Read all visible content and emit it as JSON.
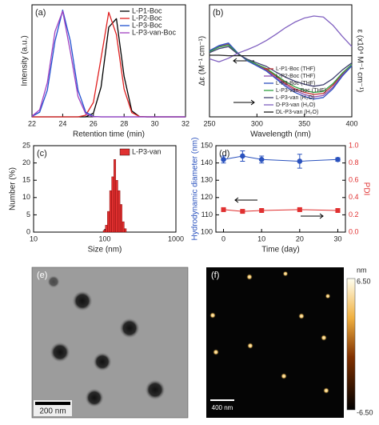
{
  "chart_data": [
    {
      "type": "line",
      "label": "(a)",
      "xlabel": "Retention time (min)",
      "ylabel": "Intensity (a.u.)",
      "x": [
        22,
        22.5,
        23,
        23.5,
        24,
        24.5,
        25,
        25.5,
        26,
        26.5,
        27,
        27.5,
        28,
        28.5,
        29,
        29.5,
        30,
        30.5,
        31,
        31.5,
        32
      ],
      "series": [
        {
          "name": "L-P1-Boc",
          "color": "#000000",
          "values": [
            0,
            0,
            0,
            0,
            0,
            0,
            0,
            0,
            0.034,
            0.28,
            0.84,
            0.92,
            0.38,
            0.056,
            0.003,
            0,
            0,
            0,
            0,
            0,
            0
          ]
        },
        {
          "name": "L-P2-Boc",
          "color": "#e02020",
          "values": [
            0,
            0,
            0,
            0,
            0,
            0,
            0,
            0.015,
            0.135,
            0.55,
            0.98,
            0.77,
            0.26,
            0.04,
            0.003,
            0,
            0,
            0,
            0,
            0,
            0
          ]
        },
        {
          "name": "L-P3-Boc",
          "color": "#2050d0",
          "values": [
            0.004,
            0.044,
            0.25,
            0.71,
            1,
            0.71,
            0.25,
            0.044,
            0.004,
            0,
            0,
            0,
            0,
            0,
            0,
            0,
            0,
            0,
            0,
            0,
            0
          ]
        },
        {
          "name": "L-P3-van-Boc",
          "color": "#a040c0",
          "values": [
            0.007,
            0.066,
            0.32,
            0.8,
            0.99,
            0.61,
            0.19,
            0.028,
            0.002,
            0,
            0,
            0,
            0,
            0,
            0,
            0,
            0,
            0,
            0,
            0,
            0
          ]
        }
      ],
      "xlim": [
        22,
        32
      ],
      "xticks": [
        22,
        24,
        26,
        28,
        30,
        32
      ],
      "ylim": [
        0,
        1.05
      ],
      "legend": "upper right"
    },
    {
      "type": "line",
      "label": "(b)",
      "xlabel": "Wavelength (nm)",
      "ylabel": "Δε (M⁻¹ cm⁻¹)",
      "y2label": "ε (x10⁴ M⁻¹ cm⁻¹)",
      "x": [
        250,
        260,
        270,
        280,
        290,
        300,
        310,
        320,
        330,
        340,
        350,
        360,
        370,
        380,
        390,
        400
      ],
      "series": [
        {
          "name": "L-P1-Boc (THF)",
          "color": "#c03030",
          "values": [
            0.09,
            0.18,
            0.22,
            0.04,
            -0.09,
            -0.18,
            -0.27,
            -0.4,
            -0.54,
            -0.65,
            -0.72,
            -0.76,
            -0.74,
            -0.58,
            -0.36,
            -0.18
          ]
        },
        {
          "name": "L-P2-Boc (THF)",
          "color": "#9050b0",
          "values": [
            0.1,
            0.19,
            0.24,
            0.05,
            -0.1,
            -0.19,
            -0.29,
            -0.43,
            -0.57,
            -0.68,
            -0.76,
            -0.81,
            -0.78,
            -0.62,
            -0.38,
            -0.19
          ]
        },
        {
          "name": "L-P3-Boc (THF)",
          "color": "#3050c0",
          "values": [
            0.1,
            0.2,
            0.25,
            0.05,
            -0.1,
            -0.2,
            -0.3,
            -0.45,
            -0.6,
            -0.72,
            -0.8,
            -0.85,
            -0.82,
            -0.65,
            -0.4,
            -0.2
          ]
        },
        {
          "name": "L-P3-van-Boc (THF)",
          "color": "#30a040",
          "values": [
            0.08,
            0.17,
            0.21,
            0.04,
            -0.08,
            -0.17,
            -0.25,
            -0.38,
            -0.51,
            -0.61,
            -0.68,
            -0.72,
            -0.7,
            -0.55,
            -0.34,
            -0.17
          ]
        },
        {
          "name": "L-P3-van (H₂O)",
          "color": "#404070",
          "values": [
            0.06,
            0.14,
            0.18,
            0.03,
            -0.07,
            -0.14,
            -0.21,
            -0.32,
            -0.42,
            -0.5,
            -0.56,
            -0.6,
            -0.57,
            -0.45,
            -0.28,
            -0.14
          ]
        },
        {
          "name": "D-P3-van (H₂O)",
          "color": "#8060c0",
          "values": [
            -0.06,
            -0.12,
            -0.05,
            0.05,
            0.12,
            0.2,
            0.3,
            0.42,
            0.55,
            0.66,
            0.74,
            0.78,
            0.76,
            0.6,
            0.38,
            0.18
          ]
        },
        {
          "name": "DL-P3-van (H₂O)",
          "color": "#202020",
          "values": [
            0.01,
            0.01,
            0,
            0,
            0,
            0,
            0,
            0,
            0,
            0,
            0,
            0,
            0,
            0,
            0,
            0
          ]
        }
      ],
      "xlim": [
        250,
        400
      ],
      "xticks": [
        250,
        300,
        350,
        400
      ],
      "ylim": [
        -1.2,
        1.0
      ],
      "legend": "lower right"
    },
    {
      "type": "histogram",
      "label": "(c)",
      "xlabel": "Size (nm)",
      "ylabel": "Number (%)",
      "name": "L-P3-van",
      "color": "#e03030",
      "bins": [
        95,
        102,
        109,
        117,
        125,
        134,
        143,
        153,
        164,
        175,
        188,
        201
      ],
      "values": [
        0.5,
        2,
        6,
        12,
        16,
        21,
        15,
        12,
        8,
        3,
        1
      ],
      "xlog": true,
      "xlim": [
        10,
        1000
      ],
      "xticks": [
        10,
        100,
        1000
      ],
      "ylim": [
        0,
        25
      ],
      "yticks": [
        0,
        5,
        10,
        15,
        20,
        25
      ],
      "legend": "upper right"
    },
    {
      "type": "scatter",
      "label": "(d)",
      "xlabel": "Time (day)",
      "ylabel": "Hydrodynamic diameter (nm)",
      "y2label": "PDI",
      "x": [
        0,
        5,
        10,
        20,
        30
      ],
      "series": [
        {
          "color": "#2a52be",
          "marker": "circle",
          "values": [
            142,
            144,
            142,
            141,
            142
          ],
          "errors": [
            2,
            3,
            2,
            4,
            1
          ]
        },
        {
          "color": "#e03030",
          "marker": "square",
          "axis": "y2",
          "values": [
            0.26,
            0.24,
            0.25,
            0.26,
            0.25
          ],
          "errors": [
            0.01,
            0.01,
            0.01,
            0.015,
            0.01
          ]
        }
      ],
      "xlim": [
        -2,
        32
      ],
      "xticks": [
        0,
        10,
        20,
        30
      ],
      "ylim": [
        100,
        150
      ],
      "yticks": [
        100,
        110,
        120,
        130,
        140,
        150
      ],
      "y2lim": [
        0,
        1.0
      ],
      "y2ticks": [
        {
          "value": 0,
          "label": "0.0"
        },
        0.2,
        0.4,
        0.6,
        0.8,
        {
          "value": 1.0,
          "label": "1.0"
        }
      ]
    }
  ],
  "images": [
    {
      "label": "(e)",
      "scale_bar": "200 nm"
    },
    {
      "label": "(f)",
      "scale_bar": "400 nm",
      "colorbar_unit": "nm",
      "colorbar_max": "6.50",
      "colorbar_min": "-6.50"
    }
  ]
}
